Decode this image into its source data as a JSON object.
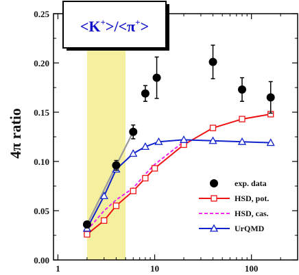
{
  "chart_data": {
    "type": "line",
    "title": "<K+>/<π+>",
    "title_parts": {
      "open": "<K",
      "sup1": "+",
      "mid": ">/<π",
      "sup2": "+",
      "close": ">"
    },
    "xlabel": "",
    "ylabel": "4π ratio",
    "xscale": "log",
    "xlim": [
      0.9,
      300
    ],
    "ylim": [
      0.0,
      0.25
    ],
    "xticks": [
      1,
      10,
      100
    ],
    "xtick_labels": [
      "1",
      "10",
      "100"
    ],
    "yticks": [
      0.0,
      0.05,
      0.1,
      0.15,
      0.2,
      0.25
    ],
    "ytick_labels": [
      "0.00",
      "0.05",
      "0.10",
      "0.15",
      "0.20",
      "0.25"
    ],
    "highlight_band": {
      "x": [
        2,
        5
      ],
      "color": "#f5f0a0"
    },
    "series": [
      {
        "name": "exp. data",
        "style": "markers",
        "marker": "filled-circle",
        "color": "#000000",
        "points": [
          {
            "x": 2.0,
            "y": 0.036,
            "err": 0.003
          },
          {
            "x": 4.0,
            "y": 0.096,
            "err": 0.005
          },
          {
            "x": 6.0,
            "y": 0.13,
            "err": 0.007
          },
          {
            "x": 8.0,
            "y": 0.169,
            "err": 0.008
          },
          {
            "x": 10.5,
            "y": 0.185,
            "err": 0.021
          },
          {
            "x": 40.0,
            "y": 0.201,
            "err": 0.017
          },
          {
            "x": 80.0,
            "y": 0.173,
            "err": 0.012
          },
          {
            "x": 158.0,
            "y": 0.165,
            "err": 0.016
          }
        ]
      },
      {
        "name": "HSD, pot.",
        "style": "line-open-square",
        "color": "#ee1111",
        "x": [
          2.0,
          3.0,
          4.0,
          6.0,
          8.0,
          10.0,
          20.0,
          40.0,
          80.0,
          158.0
        ],
        "y": [
          0.026,
          0.04,
          0.055,
          0.07,
          0.083,
          0.093,
          0.117,
          0.134,
          0.143,
          0.148
        ]
      },
      {
        "name": "HSD, cas.",
        "style": "dashed",
        "color": "#ee22ee",
        "x": [
          2.0,
          3.0,
          4.0,
          6.0,
          8.0,
          10.0,
          20.0
        ],
        "y": [
          0.03,
          0.05,
          0.061,
          0.073,
          0.087,
          0.097,
          0.12
        ]
      },
      {
        "name": "UrQMD",
        "style": "line-open-triangle",
        "color": "#1122cc",
        "x": [
          2.0,
          3.0,
          4.0,
          6.0,
          8.0,
          11.0,
          20.0,
          40.0,
          80.0,
          158.0
        ],
        "y": [
          0.032,
          0.065,
          0.092,
          0.108,
          0.115,
          0.12,
          0.122,
          0.121,
          0.12,
          0.119
        ]
      },
      {
        "name": "",
        "style": "line",
        "color": "#999999",
        "x": [
          2.0,
          4.0,
          6.0
        ],
        "y": [
          0.036,
          0.096,
          0.13
        ]
      }
    ],
    "legend_position": "bottom-right"
  }
}
